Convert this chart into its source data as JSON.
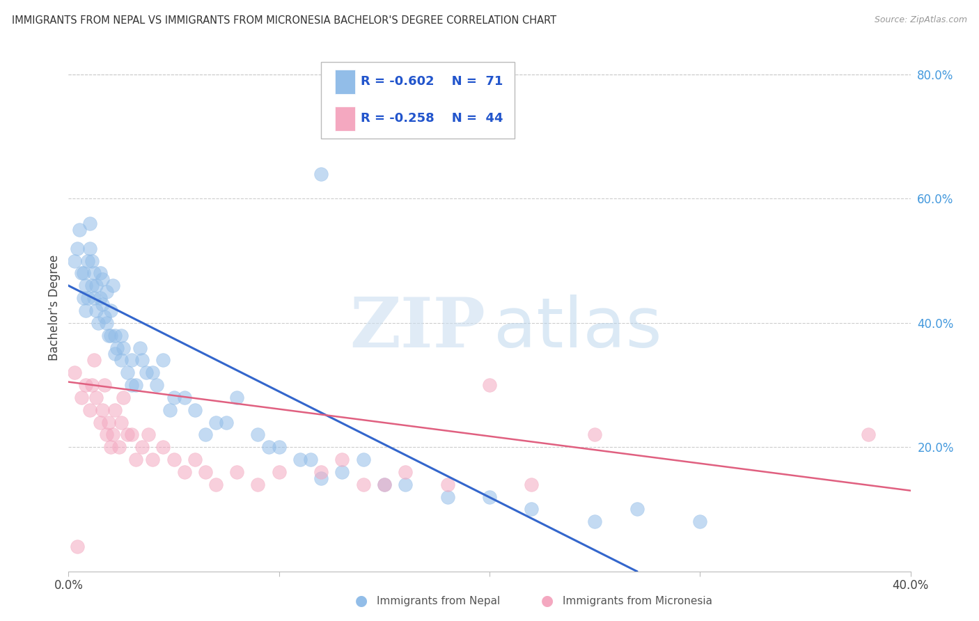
{
  "title": "IMMIGRANTS FROM NEPAL VS IMMIGRANTS FROM MICRONESIA BACHELOR'S DEGREE CORRELATION CHART",
  "source": "Source: ZipAtlas.com",
  "ylabel": "Bachelor's Degree",
  "xlim": [
    0.0,
    0.4
  ],
  "ylim": [
    0.0,
    0.85
  ],
  "xtick_vals": [
    0.0,
    0.1,
    0.2,
    0.3,
    0.4
  ],
  "xtick_labels": [
    "0.0%",
    "",
    "",
    "",
    "40.0%"
  ],
  "ytick_right_vals": [
    0.2,
    0.4,
    0.6,
    0.8
  ],
  "ytick_right_labels": [
    "20.0%",
    "40.0%",
    "60.0%",
    "80.0%"
  ],
  "nepal_color": "#92BDE8",
  "micronesia_color": "#F4A8C0",
  "nepal_line_color": "#3366CC",
  "micronesia_line_color": "#E06080",
  "legend_r_nepal": "R = -0.602",
  "legend_n_nepal": "N = 71",
  "legend_r_micronesia": "R = -0.258",
  "legend_n_micronesia": "N = 44",
  "legend_label_nepal": "Immigrants from Nepal",
  "legend_label_micronesia": "Immigrants from Micronesia",
  "nepal_line_x": [
    0.0,
    0.27
  ],
  "nepal_line_y": [
    0.46,
    0.0
  ],
  "micro_line_x": [
    0.0,
    0.4
  ],
  "micro_line_y": [
    0.305,
    0.13
  ],
  "nepal_x": [
    0.003,
    0.004,
    0.005,
    0.006,
    0.007,
    0.007,
    0.008,
    0.008,
    0.009,
    0.009,
    0.01,
    0.01,
    0.011,
    0.011,
    0.012,
    0.012,
    0.013,
    0.013,
    0.014,
    0.015,
    0.015,
    0.016,
    0.016,
    0.017,
    0.018,
    0.018,
    0.019,
    0.02,
    0.02,
    0.021,
    0.022,
    0.022,
    0.023,
    0.025,
    0.025,
    0.026,
    0.028,
    0.03,
    0.03,
    0.032,
    0.034,
    0.035,
    0.037,
    0.04,
    0.042,
    0.045,
    0.048,
    0.05,
    0.055,
    0.06,
    0.065,
    0.07,
    0.075,
    0.08,
    0.09,
    0.095,
    0.1,
    0.11,
    0.115,
    0.12,
    0.13,
    0.14,
    0.15,
    0.16,
    0.18,
    0.2,
    0.22,
    0.25,
    0.27,
    0.3,
    0.12
  ],
  "nepal_y": [
    0.5,
    0.52,
    0.55,
    0.48,
    0.44,
    0.48,
    0.42,
    0.46,
    0.5,
    0.44,
    0.52,
    0.56,
    0.46,
    0.5,
    0.44,
    0.48,
    0.42,
    0.46,
    0.4,
    0.44,
    0.48,
    0.43,
    0.47,
    0.41,
    0.45,
    0.4,
    0.38,
    0.38,
    0.42,
    0.46,
    0.35,
    0.38,
    0.36,
    0.34,
    0.38,
    0.36,
    0.32,
    0.3,
    0.34,
    0.3,
    0.36,
    0.34,
    0.32,
    0.32,
    0.3,
    0.34,
    0.26,
    0.28,
    0.28,
    0.26,
    0.22,
    0.24,
    0.24,
    0.28,
    0.22,
    0.2,
    0.2,
    0.18,
    0.18,
    0.15,
    0.16,
    0.18,
    0.14,
    0.14,
    0.12,
    0.12,
    0.1,
    0.08,
    0.1,
    0.08,
    0.64
  ],
  "micro_x": [
    0.003,
    0.006,
    0.008,
    0.01,
    0.011,
    0.012,
    0.013,
    0.015,
    0.016,
    0.017,
    0.018,
    0.019,
    0.02,
    0.021,
    0.022,
    0.024,
    0.025,
    0.026,
    0.028,
    0.03,
    0.032,
    0.035,
    0.038,
    0.04,
    0.045,
    0.05,
    0.055,
    0.06,
    0.065,
    0.07,
    0.08,
    0.09,
    0.1,
    0.12,
    0.13,
    0.14,
    0.15,
    0.16,
    0.18,
    0.2,
    0.22,
    0.25,
    0.38,
    0.004
  ],
  "micro_y": [
    0.32,
    0.28,
    0.3,
    0.26,
    0.3,
    0.34,
    0.28,
    0.24,
    0.26,
    0.3,
    0.22,
    0.24,
    0.2,
    0.22,
    0.26,
    0.2,
    0.24,
    0.28,
    0.22,
    0.22,
    0.18,
    0.2,
    0.22,
    0.18,
    0.2,
    0.18,
    0.16,
    0.18,
    0.16,
    0.14,
    0.16,
    0.14,
    0.16,
    0.16,
    0.18,
    0.14,
    0.14,
    0.16,
    0.14,
    0.3,
    0.14,
    0.22,
    0.22,
    0.04
  ]
}
